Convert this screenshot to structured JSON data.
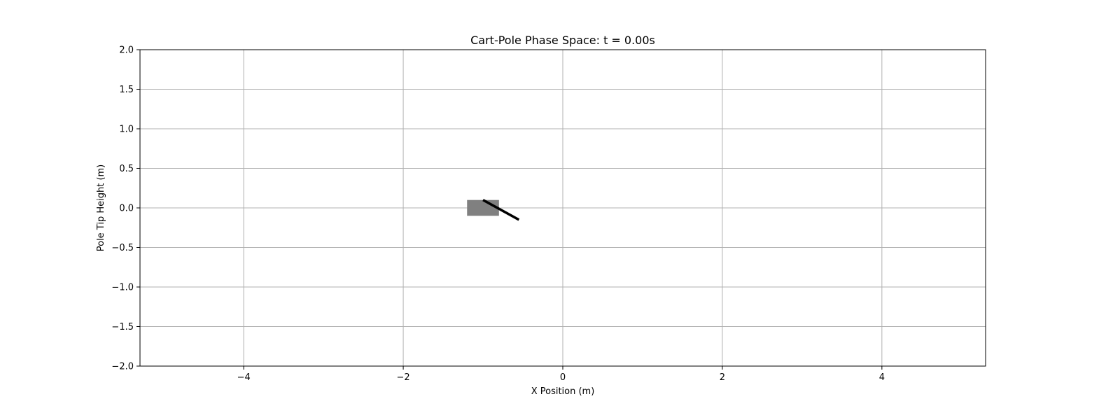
{
  "chart_data": {
    "type": "scatter",
    "title": "Cart-Pole Phase Space: t = 0.00s",
    "xlabel": "X Position (m)",
    "ylabel": "Pole Tip Height (m)",
    "xlim": [
      -5.3,
      5.3
    ],
    "ylim": [
      -2.0,
      2.0
    ],
    "xticks": [
      -4,
      -2,
      0,
      2,
      4
    ],
    "xtick_labels": [
      "−4",
      "−2",
      "0",
      "2",
      "4"
    ],
    "yticks": [
      -2.0,
      -1.5,
      -1.0,
      -0.5,
      0.0,
      0.5,
      1.0,
      1.5,
      2.0
    ],
    "ytick_labels": [
      "−2.0",
      "−1.5",
      "−1.0",
      "−0.5",
      "0.0",
      "0.5",
      "1.0",
      "1.5",
      "2.0"
    ],
    "grid": true,
    "cart": {
      "x_center": -1.0,
      "y_center": 0.0,
      "width": 0.4,
      "height": 0.2,
      "color": "#808080"
    },
    "pole": {
      "x_start": -1.0,
      "y_start": 0.1,
      "x_end": -0.55,
      "y_end": -0.15,
      "color": "#000000"
    }
  }
}
